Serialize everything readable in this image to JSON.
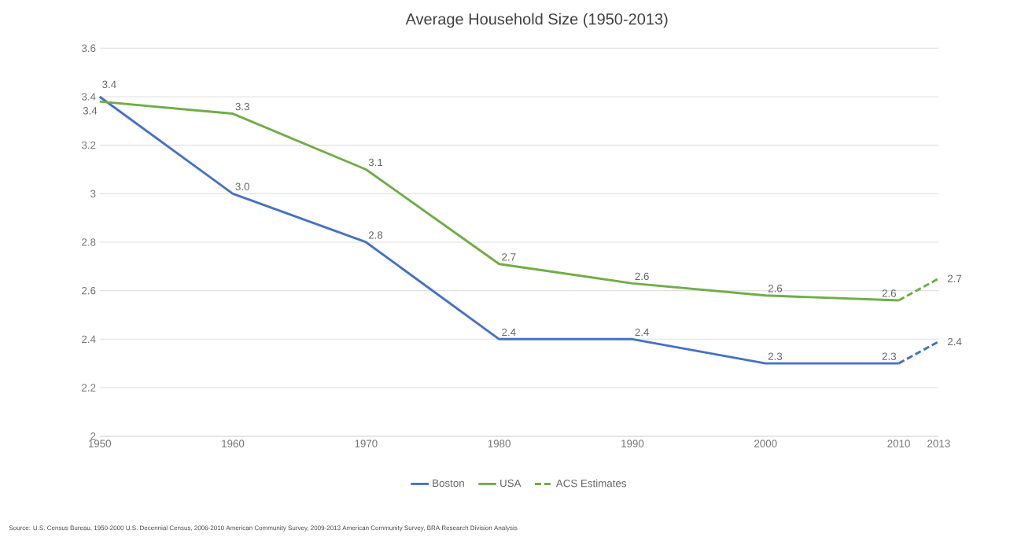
{
  "chart_data": {
    "type": "line",
    "title": "Average Household Size (1950-2013)",
    "xlim": [
      1950,
      2013
    ],
    "xticks": [
      1950,
      1960,
      1970,
      1980,
      1990,
      2000,
      2010,
      2013
    ],
    "ylim": [
      2,
      3.6
    ],
    "yticks": [
      2,
      2.2,
      2.4,
      2.6,
      2.8,
      3,
      3.2,
      3.4,
      3.6
    ],
    "grid": "y",
    "legend": "bottom",
    "marker": "none",
    "series": [
      {
        "name": "Boston",
        "color": "#4472c4",
        "line_style": "solid",
        "x": [
          1950,
          1960,
          1970,
          1980,
          1990,
          2000,
          2010
        ],
        "values": [
          3.4,
          3.0,
          2.8,
          2.4,
          2.4,
          2.3,
          2.3
        ],
        "value_labels": [
          "3.4",
          "3.0",
          "2.8",
          "2.4",
          "2.4",
          "2.3",
          "2.3"
        ]
      },
      {
        "name": "USA",
        "color": "#70ad47",
        "line_style": "solid",
        "x": [
          1950,
          1960,
          1970,
          1980,
          1990,
          2000,
          2010
        ],
        "values": [
          3.38,
          3.33,
          3.1,
          2.71,
          2.63,
          2.58,
          2.56
        ],
        "value_labels": [
          "3.4",
          "3.3",
          "3.1",
          "2.7",
          "2.6",
          "2.6",
          "2.6"
        ]
      },
      {
        "color": "#4472c4",
        "line_style": "dashed",
        "x": [
          2010,
          2013
        ],
        "values": [
          2.3,
          2.39
        ],
        "value_labels": [
          null,
          "2.4"
        ]
      },
      {
        "name": "ACS Estimates",
        "color": "#70ad47",
        "line_style": "dashed",
        "x": [
          2010,
          2013
        ],
        "values": [
          2.56,
          2.65
        ],
        "value_labels": [
          null,
          "2.7"
        ]
      }
    ],
    "annotations": [
      "Source: U.S. Census Bureau, 1950-2000 U.S. Decennial Census, 2006-2010 American Community Survey, 2009-2013 American Community Survey, BRA Research Division Analysis"
    ]
  }
}
